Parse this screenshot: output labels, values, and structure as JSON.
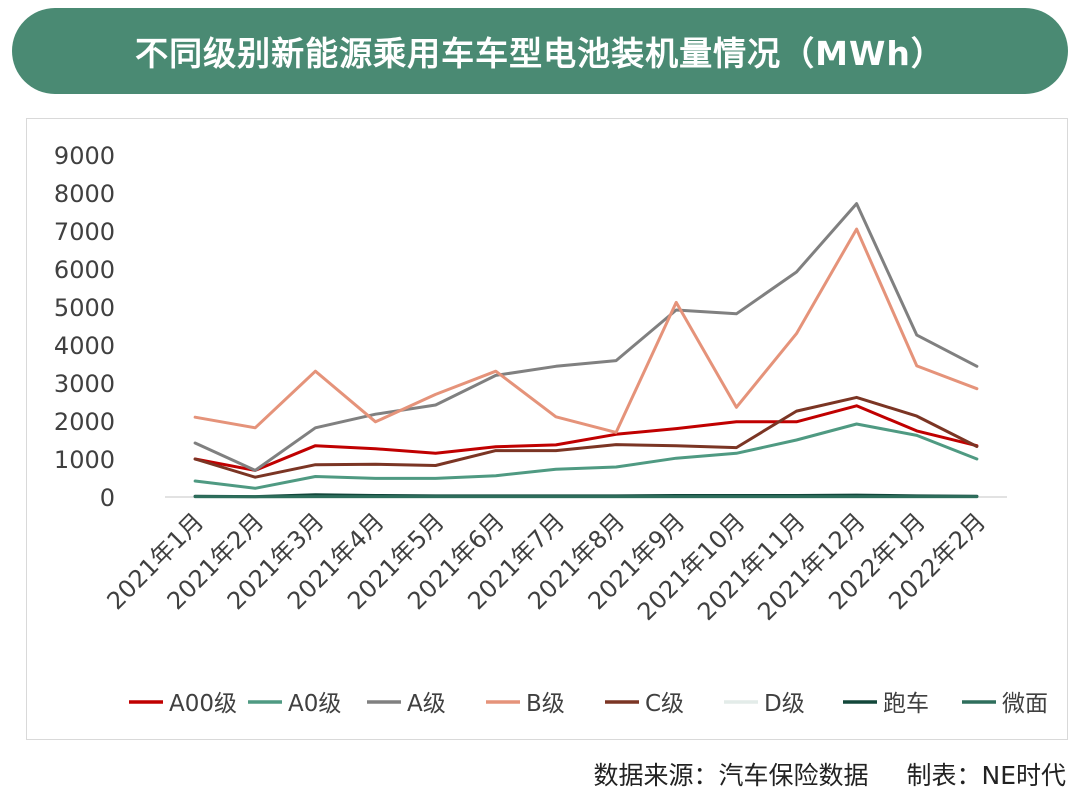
{
  "title": "不同级别新能源乘用车车型电池装机量情况（MWh）",
  "footer": {
    "source": "数据来源：汽车保险数据",
    "maker": "制表：NE时代"
  },
  "chart_data": {
    "type": "line",
    "title": "不同级别新能源乘用车车型电池装机量情况（MWh）",
    "x": [
      "2021年1月",
      "2021年2月",
      "2021年3月",
      "2021年4月",
      "2021年5月",
      "2021年6月",
      "2021年7月",
      "2021年8月",
      "2021年9月",
      "2021年10月",
      "2021年11月",
      "2021年12月",
      "2022年1月",
      "2022年2月"
    ],
    "ylim": [
      0,
      9000
    ],
    "yticks": [
      0,
      1000,
      2000,
      3000,
      4000,
      5000,
      6000,
      7000,
      8000,
      9000
    ],
    "grid": false,
    "legend_position": "bottom",
    "series": [
      {
        "name": "A00级",
        "color": "#c00000",
        "values": [
          1000,
          700,
          1350,
          1270,
          1150,
          1320,
          1370,
          1650,
          1800,
          1980,
          1980,
          2400,
          1740,
          1350
        ]
      },
      {
        "name": "A0级",
        "color": "#4f9a82",
        "values": [
          420,
          230,
          540,
          490,
          490,
          560,
          730,
          790,
          1020,
          1150,
          1500,
          1920,
          1620,
          1000
        ]
      },
      {
        "name": "A级",
        "color": "#808080",
        "values": [
          1420,
          700,
          1820,
          2180,
          2420,
          3200,
          3440,
          3590,
          4920,
          4820,
          5920,
          7720,
          4260,
          3440
        ]
      },
      {
        "name": "B级",
        "color": "#e5937a",
        "values": [
          2100,
          1820,
          3310,
          1980,
          2700,
          3310,
          2110,
          1700,
          5120,
          2360,
          4300,
          7050,
          3450,
          2850
        ]
      },
      {
        "name": "C级",
        "color": "#7b3524",
        "values": [
          1000,
          520,
          850,
          860,
          830,
          1220,
          1220,
          1380,
          1350,
          1300,
          2260,
          2620,
          2130,
          1330
        ]
      },
      {
        "name": "D级",
        "color": "#e3ece9",
        "values": [
          0,
          0,
          0,
          0,
          0,
          0,
          0,
          0,
          0,
          0,
          0,
          0,
          0,
          0
        ]
      },
      {
        "name": "跑车",
        "color": "#12473a",
        "values": [
          20,
          10,
          60,
          40,
          30,
          30,
          30,
          30,
          40,
          40,
          40,
          50,
          30,
          20
        ]
      },
      {
        "name": "微面",
        "color": "#2e6e5c",
        "values": [
          10,
          5,
          10,
          10,
          10,
          10,
          10,
          10,
          10,
          10,
          10,
          10,
          10,
          10
        ]
      }
    ]
  }
}
